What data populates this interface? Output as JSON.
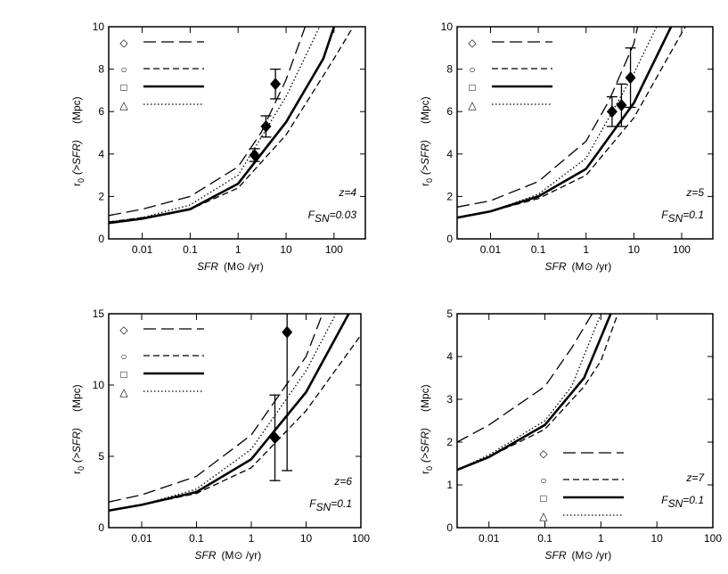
{
  "chart_data": [
    {
      "type": "line",
      "xscale": "log",
      "legend": "upper left",
      "annotations": {
        "z": "z=4",
        "f": "F",
        "f_sub": "SN",
        "f_rest": "=0.03"
      },
      "ylabel": {
        "symbol": "r",
        "sub": "0",
        "arg": "(>SFR)",
        "unit": "(Mpc)"
      },
      "xlabel": {
        "var": "SFR",
        "unit": "(M⊙ /yr)"
      },
      "xlim": [
        0.002,
        450
      ],
      "xticks": [
        0.01,
        0.1,
        1,
        10,
        100
      ],
      "ylim": [
        0,
        10
      ],
      "yticks": [
        0,
        2,
        4,
        6,
        8,
        10
      ],
      "series": [
        {
          "name": "◇",
          "color": "#000000",
          "linestyle": "long-dash",
          "x": [
            0.002,
            0.01,
            0.1,
            1,
            3,
            10,
            25
          ],
          "values": [
            1.1,
            1.4,
            2.0,
            3.4,
            5.0,
            7.5,
            10
          ]
        },
        {
          "name": "○",
          "color": "#000000",
          "linestyle": "dash",
          "x": [
            0.002,
            0.01,
            0.1,
            1,
            10,
            100,
            250
          ],
          "values": [
            0.8,
            1.0,
            1.4,
            2.4,
            4.9,
            8.5,
            10
          ]
        },
        {
          "name": "□",
          "color": "#000000",
          "linestyle": "solid",
          "x": [
            0.002,
            0.01,
            0.1,
            1,
            10,
            60,
            100
          ],
          "values": [
            0.75,
            0.95,
            1.4,
            2.6,
            5.5,
            8.5,
            10
          ]
        },
        {
          "name": "△",
          "color": "#000000",
          "linestyle": "dot",
          "x": [
            0.002,
            0.01,
            0.1,
            1,
            10,
            50
          ],
          "values": [
            0.8,
            1.0,
            1.6,
            3.0,
            6.7,
            10
          ]
        }
      ],
      "points": {
        "color": "#000000",
        "x": [
          2.2,
          3.8,
          6.0
        ],
        "values": [
          3.95,
          5.3,
          7.3
        ],
        "errors": [
          0.3,
          0.5,
          0.7
        ]
      }
    },
    {
      "type": "line",
      "xscale": "log",
      "legend": "upper left",
      "annotations": {
        "z": "z=5",
        "f": "F",
        "f_sub": "SN",
        "f_rest": "=0.1"
      },
      "ylabel": {
        "symbol": "r",
        "sub": "0",
        "arg": "(>SFR)",
        "unit": "(Mpc)"
      },
      "xlabel": {
        "var": "SFR",
        "unit": "(M⊙ /yr)"
      },
      "xlim": [
        0.002,
        450
      ],
      "xticks": [
        0.01,
        0.1,
        1,
        10,
        100
      ],
      "ylim": [
        0,
        10
      ],
      "yticks": [
        0,
        2,
        4,
        6,
        8,
        10
      ],
      "series": [
        {
          "name": "◇",
          "color": "#000000",
          "linestyle": "long-dash",
          "x": [
            0.002,
            0.01,
            0.1,
            1,
            3,
            10,
            12
          ],
          "values": [
            1.5,
            1.8,
            2.7,
            4.6,
            6.5,
            9.2,
            10
          ]
        },
        {
          "name": "○",
          "color": "#000000",
          "linestyle": "dash",
          "x": [
            0.002,
            0.01,
            0.1,
            1,
            10,
            100,
            120
          ],
          "values": [
            1.0,
            1.3,
            1.9,
            3.0,
            5.7,
            9.7,
            10
          ]
        },
        {
          "name": "□",
          "color": "#000000",
          "linestyle": "solid",
          "x": [
            0.002,
            0.01,
            0.1,
            1,
            10,
            60
          ],
          "values": [
            1.0,
            1.3,
            2.0,
            3.3,
            6.4,
            10
          ]
        },
        {
          "name": "△",
          "color": "#000000",
          "linestyle": "dot",
          "x": [
            0.002,
            0.01,
            0.1,
            1,
            10,
            30
          ],
          "values": [
            1.0,
            1.3,
            2.1,
            3.8,
            7.8,
            10
          ]
        }
      ],
      "points": {
        "color": "#000000",
        "x": [
          3.5,
          5.5,
          8.5
        ],
        "values": [
          6.0,
          6.3,
          7.6
        ],
        "errors": [
          0.7,
          1.0,
          1.4
        ]
      }
    },
    {
      "type": "line",
      "xscale": "log",
      "legend": "upper left",
      "annotations": {
        "z": "z=6",
        "f": "F",
        "f_sub": "SN",
        "f_rest": "=0.1"
      },
      "ylabel": {
        "symbol": "r",
        "sub": "0",
        "arg": "(>SFR)",
        "unit": "(Mpc)"
      },
      "xlabel": {
        "var": "SFR",
        "unit": "(M⊙ /yr)"
      },
      "xlim": [
        0.0025,
        100
      ],
      "xticks": [
        0.01,
        0.1,
        1,
        10,
        100
      ],
      "ylim": [
        0,
        15
      ],
      "yticks": [
        0,
        5,
        10,
        15
      ],
      "series": [
        {
          "name": "◇",
          "color": "#000000",
          "linestyle": "long-dash",
          "x": [
            0.0025,
            0.01,
            0.1,
            1,
            10,
            20
          ],
          "values": [
            1.8,
            2.3,
            3.6,
            6.5,
            12,
            15
          ]
        },
        {
          "name": "○",
          "color": "#000000",
          "linestyle": "dash",
          "x": [
            0.0025,
            0.01,
            0.1,
            1,
            10,
            100
          ],
          "values": [
            1.2,
            1.6,
            2.4,
            4.2,
            8.2,
            13.5
          ]
        },
        {
          "name": "□",
          "color": "#000000",
          "linestyle": "solid",
          "x": [
            0.0025,
            0.01,
            0.1,
            1,
            10,
            60
          ],
          "values": [
            1.2,
            1.6,
            2.5,
            4.8,
            9.5,
            15
          ]
        },
        {
          "name": "△",
          "color": "#000000",
          "linestyle": "dot",
          "x": [
            0.0025,
            0.01,
            0.1,
            1,
            10,
            35
          ],
          "values": [
            1.2,
            1.6,
            2.7,
            5.5,
            11,
            15
          ]
        }
      ],
      "points": {
        "color": "#000000",
        "x": [
          2.7,
          4.5
        ],
        "values": [
          6.3,
          13.7
        ],
        "errors": [
          3.0,
          9.7
        ]
      }
    },
    {
      "type": "line",
      "xscale": "log",
      "legend": "lower right",
      "annotations": {
        "z": "z=7",
        "f": "F",
        "f_sub": "SN",
        "f_rest": "=0.1"
      },
      "ylabel": {
        "symbol": "r",
        "sub": "0",
        "arg": "(>SFR)",
        "unit": "(Mpc)"
      },
      "xlabel": {
        "var": "SFR",
        "unit": "(M⊙ /yr)"
      },
      "xlim": [
        0.0027,
        100
      ],
      "xticks": [
        0.01,
        0.1,
        1,
        10,
        100
      ],
      "ylim": [
        0,
        5
      ],
      "yticks": [
        0,
        1,
        2,
        3,
        4,
        5
      ],
      "series": [
        {
          "name": "◇",
          "color": "#000000",
          "linestyle": "long-dash",
          "x": [
            0.0027,
            0.01,
            0.1,
            0.3,
            0.7
          ],
          "values": [
            2.0,
            2.4,
            3.3,
            4.2,
            5
          ]
        },
        {
          "name": "○",
          "color": "#000000",
          "linestyle": "dash",
          "x": [
            0.0027,
            0.01,
            0.1,
            0.5,
            1,
            2
          ],
          "values": [
            1.35,
            1.65,
            2.3,
            3.3,
            3.9,
            5
          ]
        },
        {
          "name": "□",
          "color": "#000000",
          "linestyle": "solid",
          "x": [
            0.0027,
            0.01,
            0.1,
            0.5,
            1.5
          ],
          "values": [
            1.35,
            1.65,
            2.4,
            3.5,
            5
          ]
        },
        {
          "name": "△",
          "color": "#000000",
          "linestyle": "dot",
          "x": [
            0.0027,
            0.01,
            0.1,
            0.3,
            1
          ],
          "values": [
            1.35,
            1.7,
            2.5,
            3.3,
            5
          ]
        }
      ]
    }
  ]
}
